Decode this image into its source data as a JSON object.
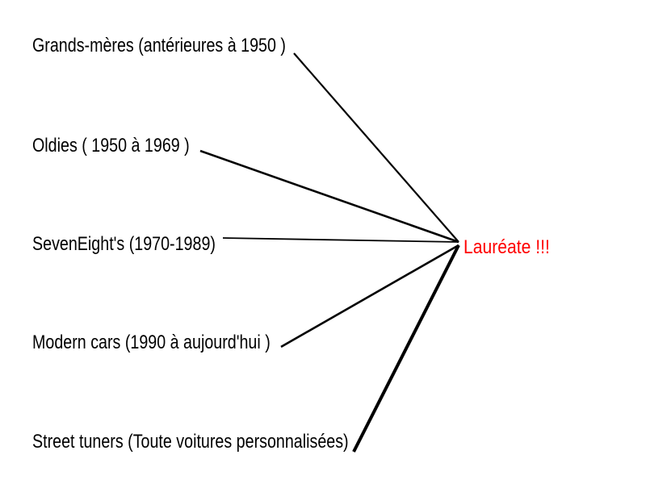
{
  "categories": [
    "Grands-mères (antérieures à 1950 )",
    "Oldies ( 1950 à 1969 )",
    "SevenEight's (1970-1989)",
    "Modern cars (1990 à aujourd'hui )",
    "Street tuners (Toute voitures personnalisées)"
  ],
  "winner": {
    "label": "Lauréate !!!",
    "color": "#ff0000"
  },
  "line_color": "#000000"
}
